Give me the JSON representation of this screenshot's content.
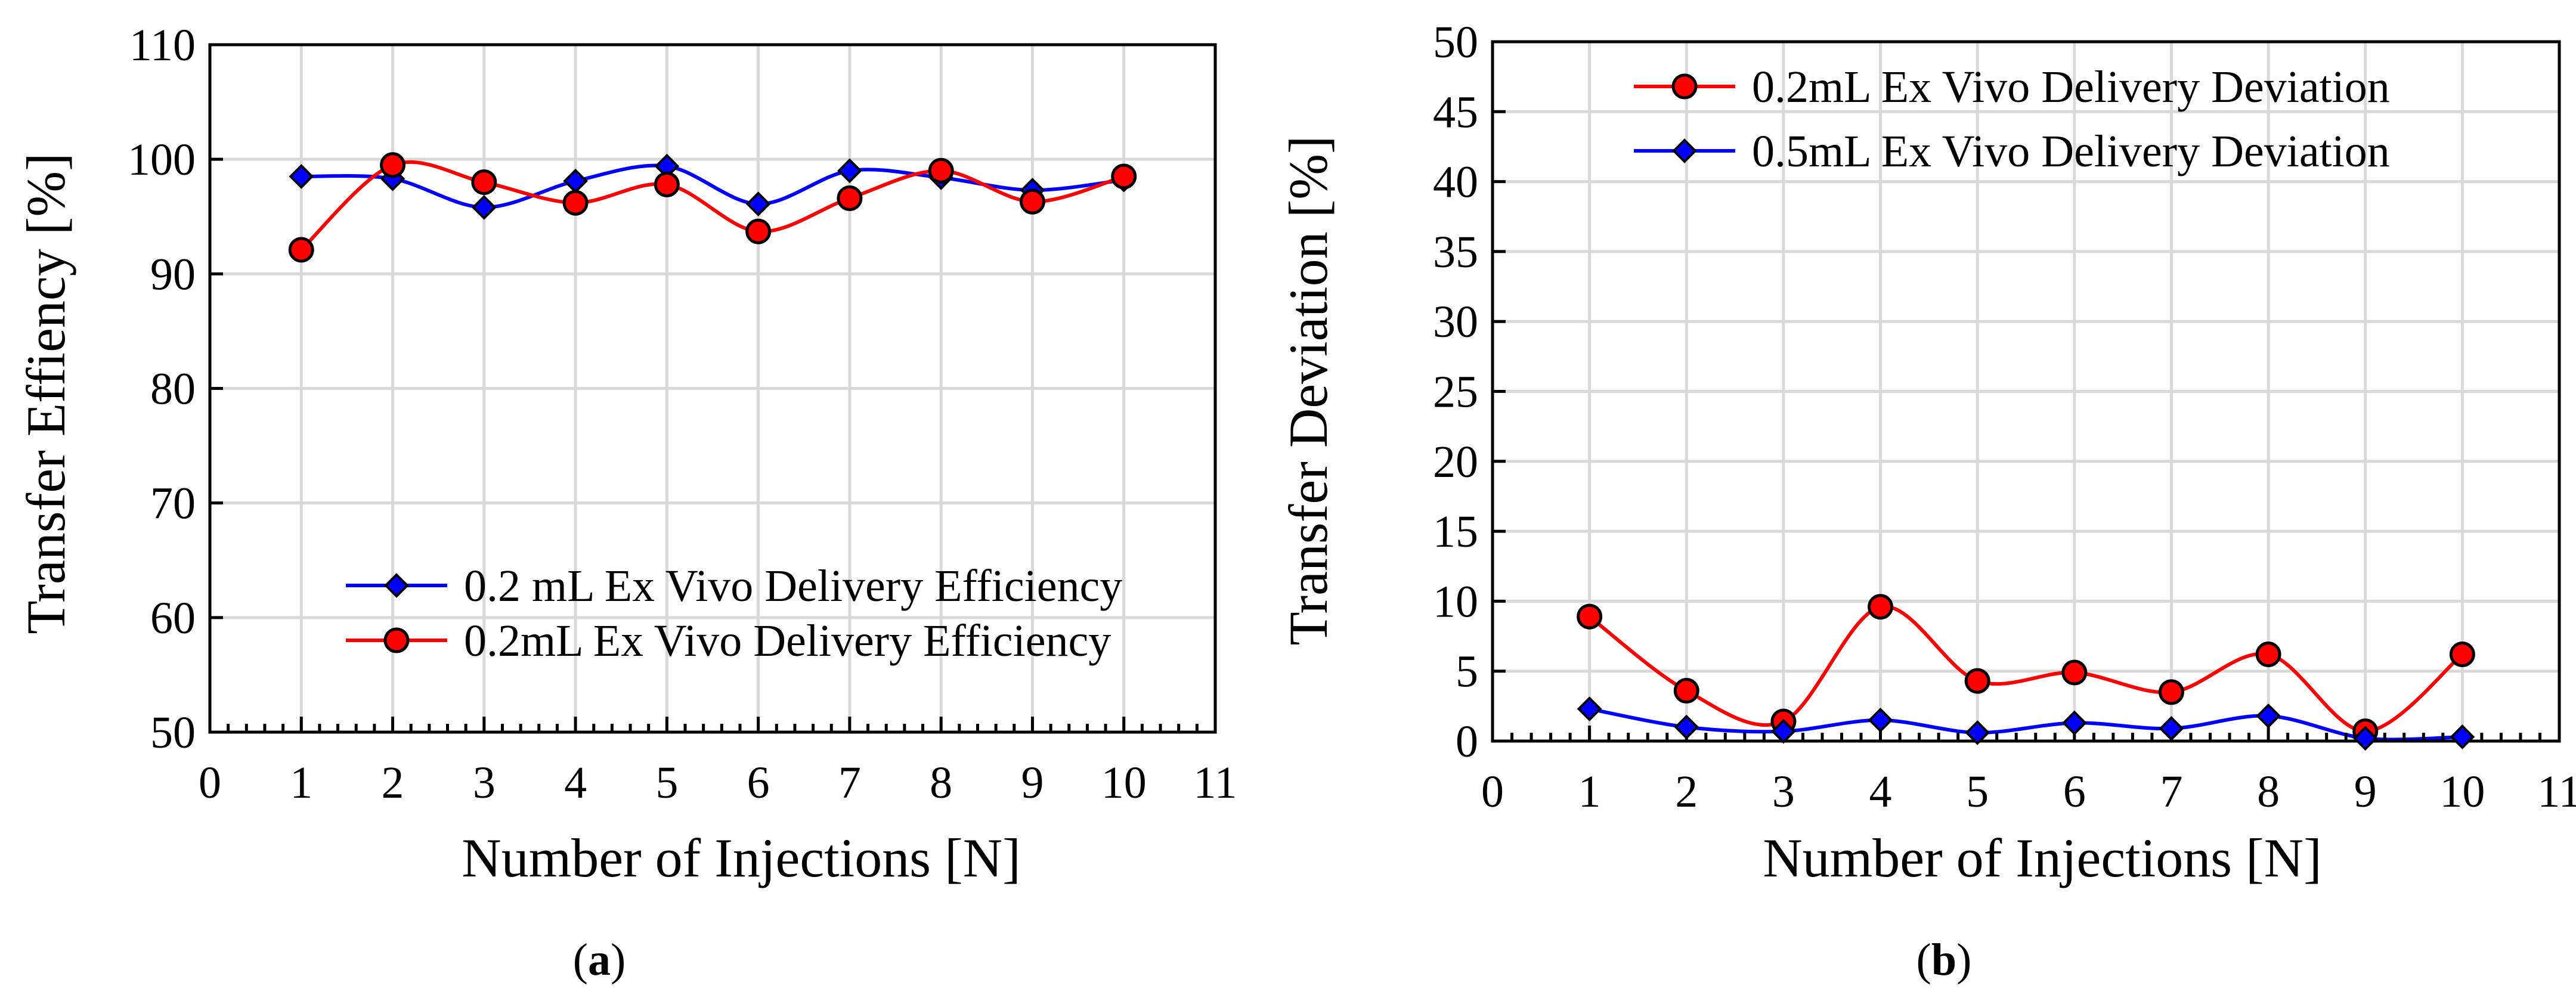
{
  "chart_data": [
    {
      "type": "line",
      "panel_label": "a",
      "xlabel": "Number of Injections [N]",
      "ylabel": "Transfer Effiency [%]",
      "xlim": [
        0,
        11
      ],
      "ylim": [
        50,
        110
      ],
      "x_ticks": [
        "0",
        "1",
        "2",
        "3",
        "4",
        "5",
        "6",
        "7",
        "8",
        "9",
        "10",
        "11"
      ],
      "y_ticks": [
        "50",
        "60",
        "70",
        "80",
        "90",
        "100",
        "110"
      ],
      "legend_position": "bottom-right",
      "series": [
        {
          "name": "0.2 mL Ex Vivo Delivery Efficiency",
          "color": "#0000ff",
          "marker": "diamond",
          "x": [
            1,
            2,
            3,
            4,
            5,
            6,
            7,
            8,
            9,
            10
          ],
          "y": [
            98.5,
            98.3,
            95.8,
            98.1,
            99.4,
            96.1,
            99.0,
            98.4,
            97.3,
            98.2
          ]
        },
        {
          "name": "0.2mL Ex Vivo Delivery Efficiency",
          "color": "#ff0000",
          "marker": "circle",
          "x": [
            1,
            2,
            3,
            4,
            5,
            6,
            7,
            8,
            9,
            10
          ],
          "y": [
            92.1,
            99.5,
            98.0,
            96.2,
            97.8,
            93.7,
            96.6,
            99.0,
            96.3,
            98.5
          ]
        }
      ]
    },
    {
      "type": "line",
      "panel_label": "b",
      "xlabel": "Number of Injections [N]",
      "ylabel": "Transfer Deviation [%]",
      "xlim": [
        0,
        11
      ],
      "ylim": [
        0,
        50
      ],
      "x_ticks": [
        "0",
        "1",
        "2",
        "3",
        "4",
        "5",
        "6",
        "7",
        "8",
        "9",
        "10",
        "11"
      ],
      "y_ticks": [
        "0",
        "5",
        "10",
        "15",
        "20",
        "25",
        "30",
        "35",
        "40",
        "45",
        "50"
      ],
      "legend_position": "top",
      "series": [
        {
          "name": "0.2mL Ex Vivo Delivery Deviation",
          "color": "#ff0000",
          "marker": "circle",
          "x": [
            1,
            2,
            3,
            4,
            5,
            6,
            7,
            8,
            9,
            10
          ],
          "y": [
            8.9,
            3.6,
            1.4,
            9.6,
            4.3,
            4.9,
            3.5,
            6.2,
            0.7,
            6.2
          ]
        },
        {
          "name": "0.5mL Ex Vivo Delivery Deviation",
          "color": "#0000ff",
          "marker": "diamond",
          "x": [
            1,
            2,
            3,
            4,
            5,
            6,
            7,
            8,
            9,
            10
          ],
          "y": [
            2.3,
            1.0,
            0.7,
            1.5,
            0.6,
            1.3,
            0.9,
            1.8,
            0.2,
            0.3
          ]
        }
      ]
    }
  ]
}
